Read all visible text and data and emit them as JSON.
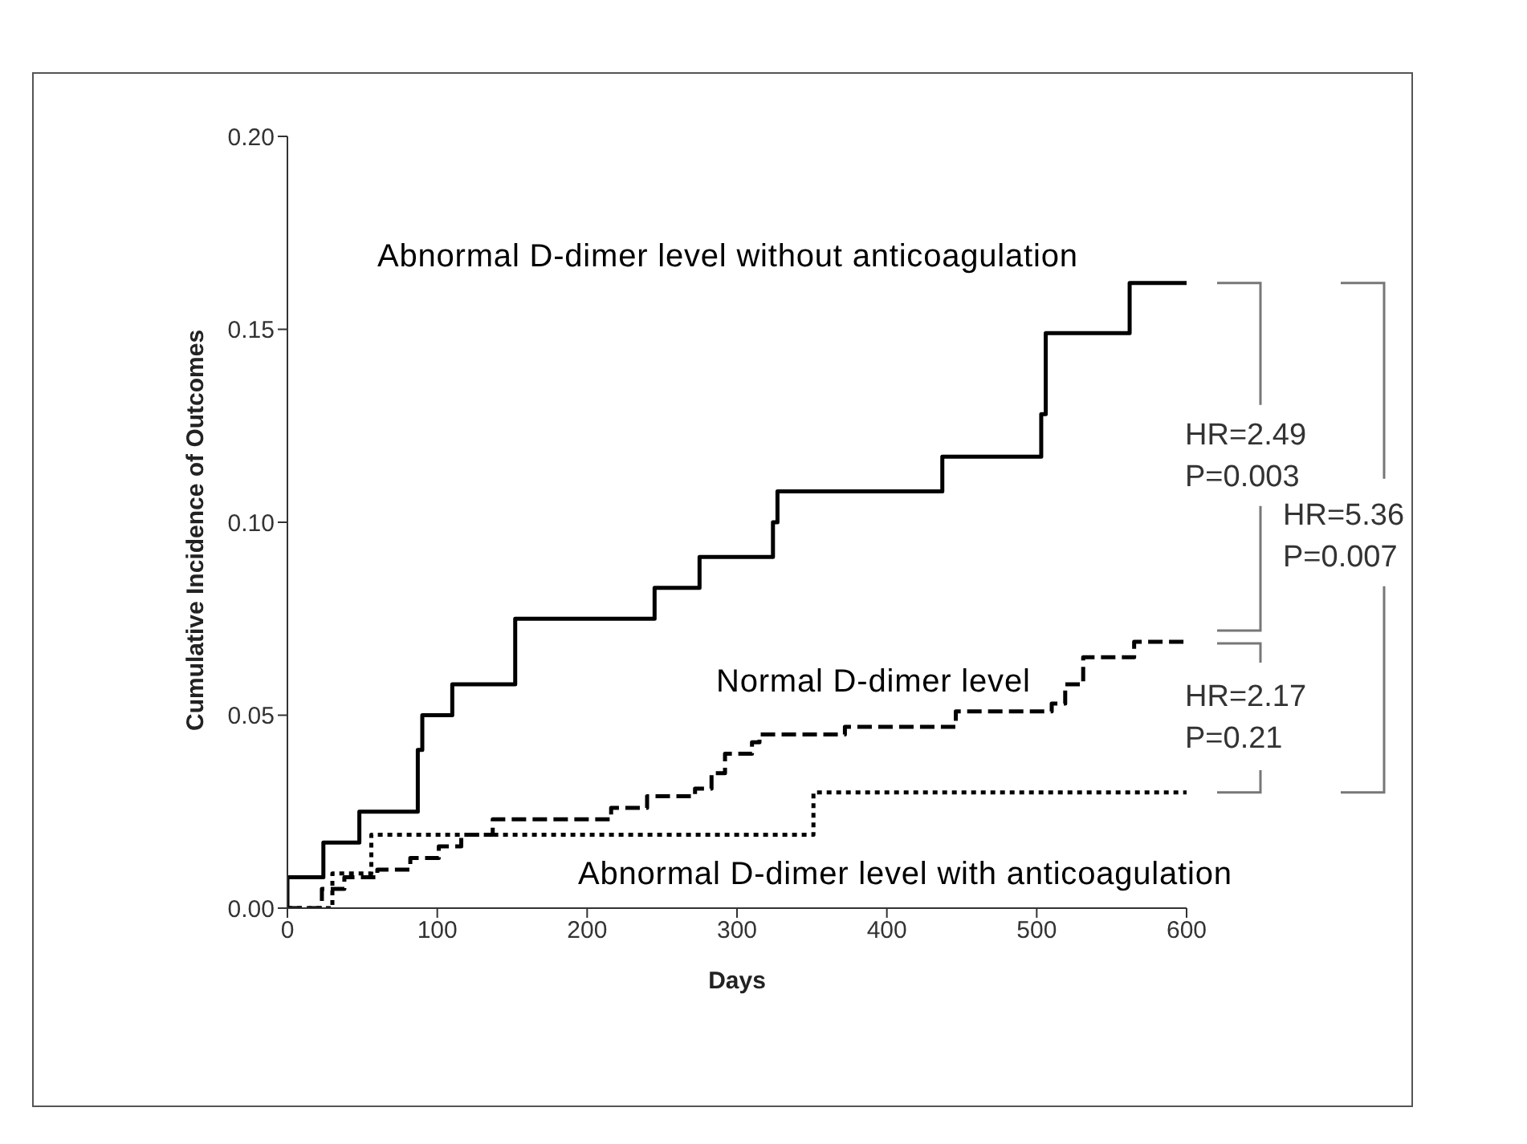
{
  "chart_data": {
    "type": "step",
    "xlabel": "Days",
    "ylabel": "Cumulative Incidence of Outcomes",
    "xlim": [
      0,
      600
    ],
    "xticks": [
      0,
      100,
      200,
      300,
      400,
      500,
      600
    ],
    "ylim": [
      0,
      0.2
    ],
    "yticks": [
      {
        "value": 0,
        "label": "0.00"
      },
      {
        "value": 0.05,
        "label": "0.05"
      },
      {
        "value": 0.1,
        "label": "0.10"
      },
      {
        "value": 0.15,
        "label": "0.15"
      },
      {
        "value": 0.2,
        "label": "0.20"
      }
    ],
    "grid": false,
    "legend": false,
    "marker": "none",
    "series": [
      {
        "name": "Abnormal D-dimer level without anticoagulation",
        "color": "#000000",
        "line_style": "solid",
        "x": [
          0,
          0,
          24,
          48,
          87,
          90,
          110,
          152,
          245,
          275,
          324,
          327,
          437,
          503,
          506,
          562,
          600
        ],
        "values": [
          0,
          0.008,
          0.017,
          0.025,
          0.041,
          0.05,
          0.058,
          0.075,
          0.083,
          0.091,
          0.1,
          0.108,
          0.117,
          0.128,
          0.149,
          0.162,
          0.162
        ]
      },
      {
        "name": "Normal D-dimer level",
        "color": "#000000",
        "line_style": "dashed",
        "x": [
          0,
          23,
          38,
          60,
          82,
          101,
          116,
          137,
          216,
          240,
          272,
          283,
          292,
          310,
          315,
          372,
          446,
          510,
          519,
          531,
          565,
          600
        ],
        "values": [
          0,
          0.005,
          0.008,
          0.01,
          0.013,
          0.016,
          0.019,
          0.023,
          0.026,
          0.029,
          0.031,
          0.035,
          0.04,
          0.043,
          0.045,
          0.047,
          0.051,
          0.053,
          0.058,
          0.065,
          0.069,
          0.069
        ]
      },
      {
        "name": "Abnormal D-dimer level with anticoagulation",
        "color": "#000000",
        "line_style": "dotted",
        "x": [
          0,
          30,
          56,
          351,
          600
        ],
        "values": [
          0,
          0.009,
          0.019,
          0.03,
          0.03
        ]
      }
    ],
    "annotations": [
      "HR=2.49",
      "P=0.003",
      "HR=5.36",
      "P=0.007",
      "HR=2.17",
      "P=0.21"
    ]
  }
}
